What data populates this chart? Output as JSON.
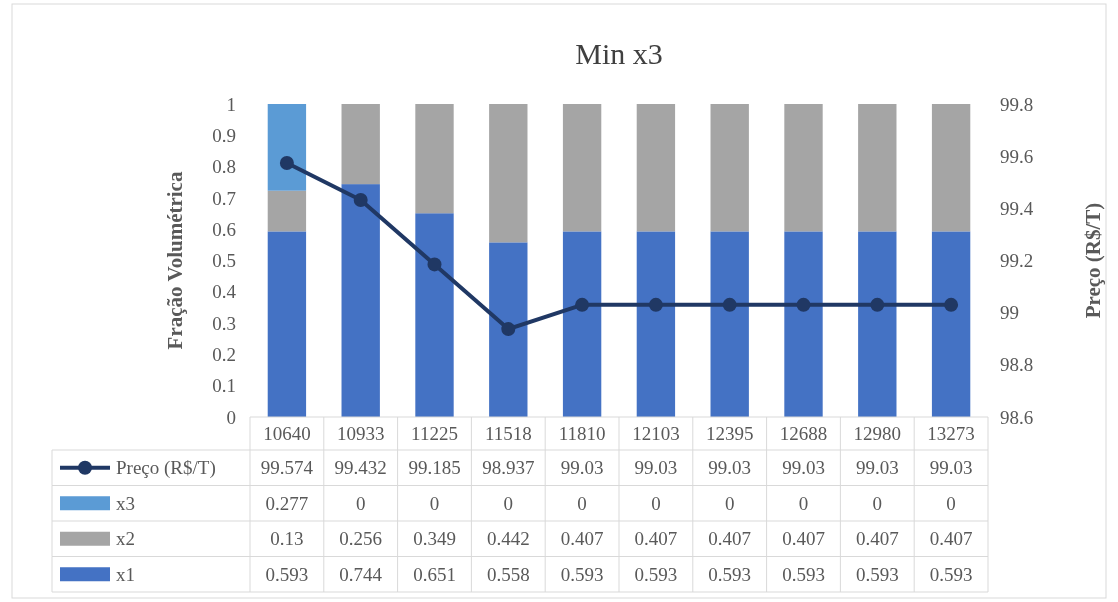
{
  "chart_data": {
    "type": "bar",
    "title": "Min x3",
    "ylabel": "Fração Volumétrica",
    "y2label": "Preço (R$/T)",
    "categories": [
      "10640",
      "10933",
      "11225",
      "11518",
      "11810",
      "12103",
      "12395",
      "12688",
      "12980",
      "13273"
    ],
    "stacked": true,
    "data_labels": true,
    "legend": "bottom",
    "marker": "circle",
    "ylim": [
      0,
      1
    ],
    "yticks": [
      0,
      0.1,
      0.2,
      0.3,
      0.4,
      0.5,
      0.6,
      0.7,
      0.8,
      0.9,
      1
    ],
    "y2lim": [
      98.6,
      99.8
    ],
    "y2ticks": [
      98.6,
      98.8,
      99,
      99.2,
      99.4,
      99.6,
      99.8
    ],
    "series": [
      {
        "name": "x1",
        "color": "#4472c4",
        "values": [
          0.593,
          0.744,
          0.651,
          0.558,
          0.593,
          0.593,
          0.593,
          0.593,
          0.593,
          0.593
        ]
      },
      {
        "name": "x2",
        "color": "#a5a5a5",
        "values": [
          0.13,
          0.256,
          0.349,
          0.442,
          0.407,
          0.407,
          0.407,
          0.407,
          0.407,
          0.407
        ]
      },
      {
        "name": "x3",
        "color": "#5b9bd5",
        "values": [
          0.277,
          0,
          0,
          0,
          0,
          0,
          0,
          0,
          0,
          0
        ]
      },
      {
        "name": "Preço (R$/T)",
        "type": "line",
        "axis": "y2",
        "color": "#203864",
        "values": [
          99.574,
          99.432,
          99.185,
          98.937,
          99.03,
          99.03,
          99.03,
          99.03,
          99.03,
          99.03
        ]
      }
    ]
  }
}
